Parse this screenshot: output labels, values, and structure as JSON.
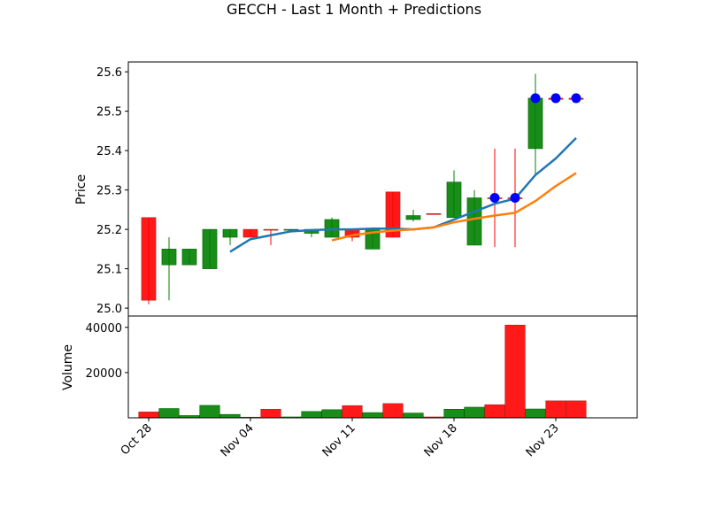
{
  "chart_data": {
    "type": "candlestick",
    "title": "GECCH - Last 1 Month + Predictions",
    "price_axis": {
      "label": "Price",
      "ylim": [
        24.98,
        25.625
      ],
      "ticks": [
        25.0,
        25.1,
        25.2,
        25.3,
        25.4,
        25.5,
        25.6
      ],
      "tick_labels": [
        "25.0",
        "25.1",
        "25.2",
        "25.3",
        "25.4",
        "25.5",
        "25.6"
      ]
    },
    "volume_axis": {
      "label": "Volume",
      "ylim": [
        0,
        45000
      ],
      "ticks": [
        20000,
        40000
      ],
      "tick_labels": [
        "20000",
        "40000"
      ]
    },
    "x_axis": {
      "xlim": [
        -1.0,
        24.0
      ],
      "ticks": [
        0,
        5,
        10,
        15,
        20
      ],
      "tick_labels": [
        "Oct 28",
        "Nov 04",
        "Nov 11",
        "Nov 18",
        "Nov 23"
      ]
    },
    "candles": [
      {
        "x": 0,
        "open": 25.23,
        "close": 25.02,
        "high": 25.23,
        "low": 25.01,
        "volume": 2600
      },
      {
        "x": 1,
        "open": 25.11,
        "close": 25.15,
        "high": 25.18,
        "low": 25.02,
        "volume": 4100
      },
      {
        "x": 2,
        "open": 25.11,
        "close": 25.15,
        "high": 25.15,
        "low": 25.11,
        "volume": 1000
      },
      {
        "x": 3,
        "open": 25.1,
        "close": 25.2,
        "high": 25.2,
        "low": 25.1,
        "volume": 5500
      },
      {
        "x": 4,
        "open": 25.18,
        "close": 25.2,
        "high": 25.2,
        "low": 25.16,
        "volume": 1500
      },
      {
        "x": 5,
        "open": 25.2,
        "close": 25.18,
        "high": 25.2,
        "low": 25.18,
        "volume": 300
      },
      {
        "x": 6,
        "open": 25.2,
        "close": 25.198,
        "high": 25.2,
        "low": 25.16,
        "volume": 3800
      },
      {
        "x": 7,
        "open": 25.198,
        "close": 25.2,
        "high": 25.2,
        "low": 25.198,
        "volume": 400
      },
      {
        "x": 8,
        "open": 25.19,
        "close": 25.2,
        "high": 25.2,
        "low": 25.18,
        "volume": 2800
      },
      {
        "x": 9,
        "open": 25.18,
        "close": 25.225,
        "high": 25.23,
        "low": 25.18,
        "volume": 3600
      },
      {
        "x": 10,
        "open": 25.2,
        "close": 25.18,
        "high": 25.2,
        "low": 25.17,
        "volume": 5400
      },
      {
        "x": 11,
        "open": 25.15,
        "close": 25.2,
        "high": 25.2,
        "low": 25.15,
        "volume": 2300
      },
      {
        "x": 12,
        "open": 25.295,
        "close": 25.18,
        "high": 25.295,
        "low": 25.18,
        "volume": 6300
      },
      {
        "x": 13,
        "open": 25.225,
        "close": 25.235,
        "high": 25.25,
        "low": 25.22,
        "volume": 2100
      },
      {
        "x": 14,
        "open": 25.24,
        "close": 25.238,
        "high": 25.24,
        "low": 25.238,
        "volume": 400
      },
      {
        "x": 15,
        "open": 25.23,
        "close": 25.32,
        "high": 25.35,
        "low": 25.23,
        "volume": 3800
      },
      {
        "x": 16,
        "open": 25.16,
        "close": 25.28,
        "high": 25.3,
        "low": 25.16,
        "volume": 4700
      },
      {
        "x": 17,
        "open": 25.28,
        "close": 25.278,
        "high": 25.405,
        "low": 25.155,
        "volume": 5800
      },
      {
        "x": 18,
        "open": 25.28,
        "close": 25.278,
        "high": 25.405,
        "low": 25.155,
        "volume": 41000
      },
      {
        "x": 19,
        "open": 25.405,
        "close": 25.533,
        "high": 25.595,
        "low": 25.34,
        "volume": 3900
      },
      {
        "x": 20,
        "open": 25.533,
        "close": 25.53,
        "high": 25.533,
        "low": 25.53,
        "volume": 7500
      },
      {
        "x": 21,
        "open": 25.533,
        "close": 25.53,
        "high": 25.533,
        "low": 25.53,
        "volume": 7500
      }
    ],
    "series": [
      {
        "style": "line",
        "color": "#1f77b4",
        "x": [
          4,
          5,
          6,
          7,
          8,
          9,
          10,
          11,
          12,
          13,
          14,
          15,
          16,
          17,
          18,
          19,
          20,
          21
        ],
        "y": [
          25.143,
          25.175,
          25.185,
          25.195,
          25.198,
          25.2,
          25.2,
          25.202,
          25.202,
          25.2,
          25.205,
          25.225,
          25.245,
          25.265,
          25.278,
          25.338,
          25.38,
          25.432
        ]
      },
      {
        "style": "line",
        "color": "#ff7f0e",
        "x": [
          9,
          10,
          11,
          12,
          13,
          14,
          15,
          16,
          17,
          18,
          19,
          20,
          21
        ],
        "y": [
          25.172,
          25.185,
          25.192,
          25.197,
          25.2,
          25.205,
          25.218,
          25.227,
          25.235,
          25.242,
          25.272,
          25.31,
          25.343
        ]
      },
      {
        "style": "markers",
        "color": "#0000ff",
        "x": [
          17,
          18,
          19,
          20,
          21
        ],
        "y": [
          25.28,
          25.28,
          25.533,
          25.533,
          25.533
        ]
      }
    ],
    "colors": {
      "up": "#008000",
      "down": "#ff0000",
      "up_edge": "#006400",
      "down_edge": "#b22222"
    }
  }
}
